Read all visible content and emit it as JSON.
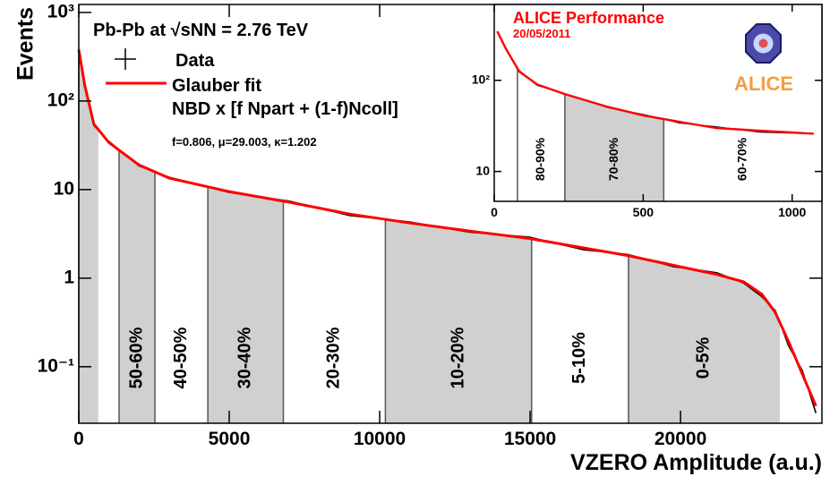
{
  "chart_data": [
    {
      "type": "line",
      "log_y": true,
      "y_label": "Events",
      "x_label": "VZERO Amplitude (a.u.)",
      "collision_label": "Pb-Pb at √sNN = 2.76 TeV",
      "fit_formula": "NBD x [f Npart + (1-f)Ncoll]",
      "fit_parameters": "f=0.806, μ=29.003, κ=1.202",
      "xlim": [
        0,
        24700
      ],
      "xticks": [
        0,
        5000,
        10000,
        15000,
        20000
      ],
      "ylim": [
        0.023,
        1230
      ],
      "yticks": [
        {
          "value": 0.1,
          "label": "10⁻¹"
        },
        1,
        10,
        {
          "value": 100,
          "label": "10²"
        },
        {
          "value": 1000,
          "label": "10³"
        }
      ],
      "x": [
        0,
        200,
        500,
        1000,
        2000,
        3000,
        5000,
        7000,
        9000,
        11000,
        13000,
        15000,
        16750,
        18250,
        19750,
        21200,
        22100,
        22700,
        23150,
        23600,
        24050,
        24500
      ],
      "series": [
        {
          "name": "Data",
          "color": "#000000",
          "values": [
            370,
            155,
            53,
            35,
            18.5,
            13.8,
            9.3,
            7.4,
            5.1,
            4.3,
            3.3,
            2.9,
            2.1,
            1.85,
            1.35,
            1.15,
            0.88,
            0.62,
            0.43,
            0.17,
            0.09,
            0.03
          ]
        },
        {
          "name": "Glauber fit",
          "color": "#ff0000",
          "values": [
            380,
            150,
            55,
            34,
            19,
            13.5,
            9.5,
            7.2,
            5.3,
            4.2,
            3.4,
            2.8,
            2.2,
            1.8,
            1.4,
            1.1,
            0.91,
            0.66,
            0.41,
            0.19,
            0.082,
            0.036
          ]
        }
      ],
      "centrality_bins": [
        {
          "from": 0,
          "to": 650,
          "shaded": true
        },
        {
          "label": "50-60%",
          "from": 1340,
          "to": 2530,
          "shaded": true
        },
        {
          "label": "40-50%",
          "from": 2530,
          "to": 4290,
          "shaded": false
        },
        {
          "label": "30-40%",
          "from": 4290,
          "to": 6800,
          "shaded": true
        },
        {
          "label": "20-30%",
          "from": 6800,
          "to": 10190,
          "shaded": false
        },
        {
          "label": "10-20%",
          "from": 10190,
          "to": 15050,
          "shaded": true
        },
        {
          "label": "5-10%",
          "from": 15050,
          "to": 18270,
          "shaded": false
        },
        {
          "label": "0-5%",
          "from": 18270,
          "to": 23300,
          "shaded": true
        }
      ],
      "shade_color": "#d0d0d0"
    },
    {
      "type": "line",
      "log_y": true,
      "title": "ALICE Performance",
      "date": "20/05/2011",
      "logo_text": "ALICE",
      "xlim": [
        0,
        1100
      ],
      "xticks": [
        0,
        500,
        1000
      ],
      "ylim": [
        4.7,
        680
      ],
      "yticks": [
        10,
        {
          "value": 100,
          "label": "10²"
        }
      ],
      "x": [
        10,
        40,
        84,
        144,
        234,
        383,
        503,
        623,
        743,
        892,
        1072
      ],
      "series": [
        {
          "color": "#000000",
          "values": [
            340,
            215,
            128,
            88,
            72,
            50,
            42,
            34,
            31,
            27,
            26
          ]
        },
        {
          "color": "#ff0000",
          "values": [
            345,
            220,
            125,
            90,
            71,
            51,
            41,
            35,
            30,
            28,
            26
          ]
        }
      ],
      "centrality_bins": [
        {
          "label": "80-90%",
          "from": 78,
          "to": 237,
          "shaded": false
        },
        {
          "label": "70-80%",
          "from": 237,
          "to": 569,
          "shaded": true
        },
        {
          "label": "60-70%",
          "from": 569,
          "shaded": false
        }
      ],
      "shade_color": "#d0d0d0"
    }
  ]
}
